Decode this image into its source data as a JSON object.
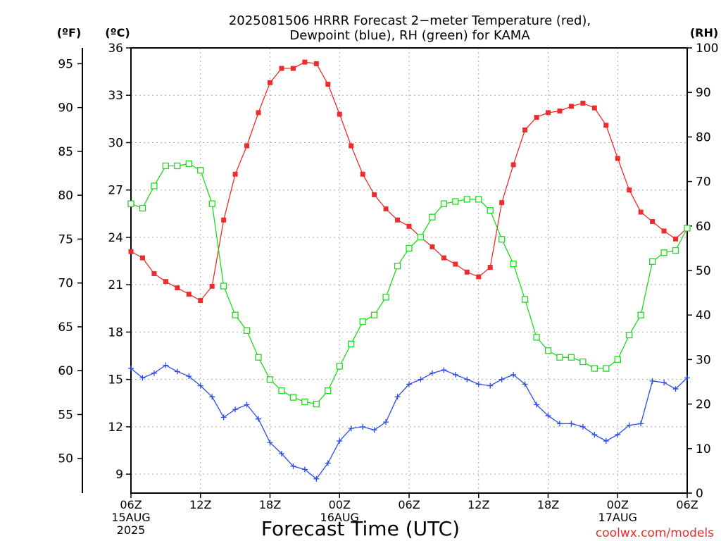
{
  "title_line1": "2025081506 HRRR Forecast 2−meter Temperature (red),",
  "title_line2": "Dewpoint (blue), RH (green) for KAMA",
  "watermark": "coolwx.com/models",
  "chart_data": {
    "type": "line",
    "xlabel": "Forecast Time (UTC)",
    "x_unit": "forecast hour since 2025-08-15 06Z",
    "xlim": [
      0,
      48
    ],
    "x_ticks": [
      {
        "x": 0,
        "lines": [
          "06Z",
          "15AUG",
          "2025"
        ]
      },
      {
        "x": 6,
        "lines": [
          "12Z"
        ]
      },
      {
        "x": 12,
        "lines": [
          "18Z"
        ]
      },
      {
        "x": 18,
        "lines": [
          "00Z",
          "16AUG"
        ]
      },
      {
        "x": 24,
        "lines": [
          "06Z"
        ]
      },
      {
        "x": 30,
        "lines": [
          "12Z"
        ]
      },
      {
        "x": 36,
        "lines": [
          "18Z"
        ]
      },
      {
        "x": 42,
        "lines": [
          "00Z",
          "17AUG"
        ]
      },
      {
        "x": 48,
        "lines": [
          "06Z"
        ]
      }
    ],
    "axes": {
      "fahrenheit": {
        "label": "(ºF)",
        "ticks": [
          50,
          55,
          60,
          65,
          70,
          75,
          80,
          85,
          90,
          95
        ]
      },
      "celsius": {
        "label": "(ºC)",
        "ylim": [
          7.8,
          36
        ],
        "ticks": [
          9,
          12,
          15,
          18,
          21,
          24,
          27,
          30,
          33,
          36
        ]
      },
      "rh": {
        "label": "(RH)",
        "ylim": [
          0,
          100
        ],
        "ticks": [
          0,
          10,
          20,
          30,
          40,
          50,
          60,
          70,
          80,
          90,
          100
        ]
      }
    },
    "grid": true,
    "series": [
      {
        "name": "Temperature",
        "axis": "celsius",
        "color": "#ee2c2c",
        "marker": "filled-square",
        "values": [
          23.1,
          22.7,
          21.7,
          21.2,
          20.8,
          20.4,
          20.0,
          20.9,
          25.1,
          28.0,
          29.8,
          31.9,
          33.8,
          34.7,
          34.7,
          35.1,
          35.0,
          33.7,
          31.8,
          29.8,
          28.0,
          26.7,
          25.8,
          25.1,
          24.7,
          24.0,
          23.4,
          22.7,
          22.3,
          21.8,
          21.5,
          22.1,
          26.2,
          28.6,
          30.8,
          31.6,
          31.9,
          32.0,
          32.3,
          32.5,
          32.2,
          31.1,
          29.0,
          27.0,
          25.6,
          25.0,
          24.4,
          23.9,
          24.6
        ]
      },
      {
        "name": "Dewpoint",
        "axis": "celsius",
        "color": "#2c4cee",
        "marker": "plus",
        "values": [
          15.7,
          15.1,
          15.4,
          15.9,
          15.5,
          15.2,
          14.6,
          13.9,
          12.6,
          13.1,
          13.4,
          12.5,
          11.0,
          10.3,
          9.5,
          9.3,
          8.7,
          9.7,
          11.1,
          11.9,
          12.0,
          11.8,
          12.3,
          13.9,
          14.7,
          15.0,
          15.4,
          15.6,
          15.3,
          15.0,
          14.7,
          14.6,
          15.0,
          15.3,
          14.7,
          13.4,
          12.7,
          12.2,
          12.2,
          12.0,
          11.5,
          11.1,
          11.5,
          12.1,
          12.2,
          14.9,
          14.8,
          14.4,
          15.1
        ]
      },
      {
        "name": "RH",
        "axis": "rh",
        "color": "#1cdc1c",
        "marker": "open-square",
        "values": [
          65.0,
          64.0,
          69.0,
          73.5,
          73.5,
          74.0,
          72.5,
          65.0,
          46.5,
          40.0,
          36.5,
          30.5,
          25.5,
          23.0,
          21.5,
          20.5,
          20.0,
          23.0,
          28.5,
          33.5,
          38.5,
          40.0,
          44.0,
          51.0,
          55.0,
          57.5,
          62.0,
          65.0,
          65.5,
          66.0,
          66.0,
          63.5,
          57.0,
          51.5,
          43.5,
          35.0,
          32.0,
          30.5,
          30.5,
          29.5,
          28.0,
          28.0,
          30.0,
          35.5,
          40.0,
          52.0,
          54.0,
          54.5,
          59.5
        ]
      }
    ]
  }
}
